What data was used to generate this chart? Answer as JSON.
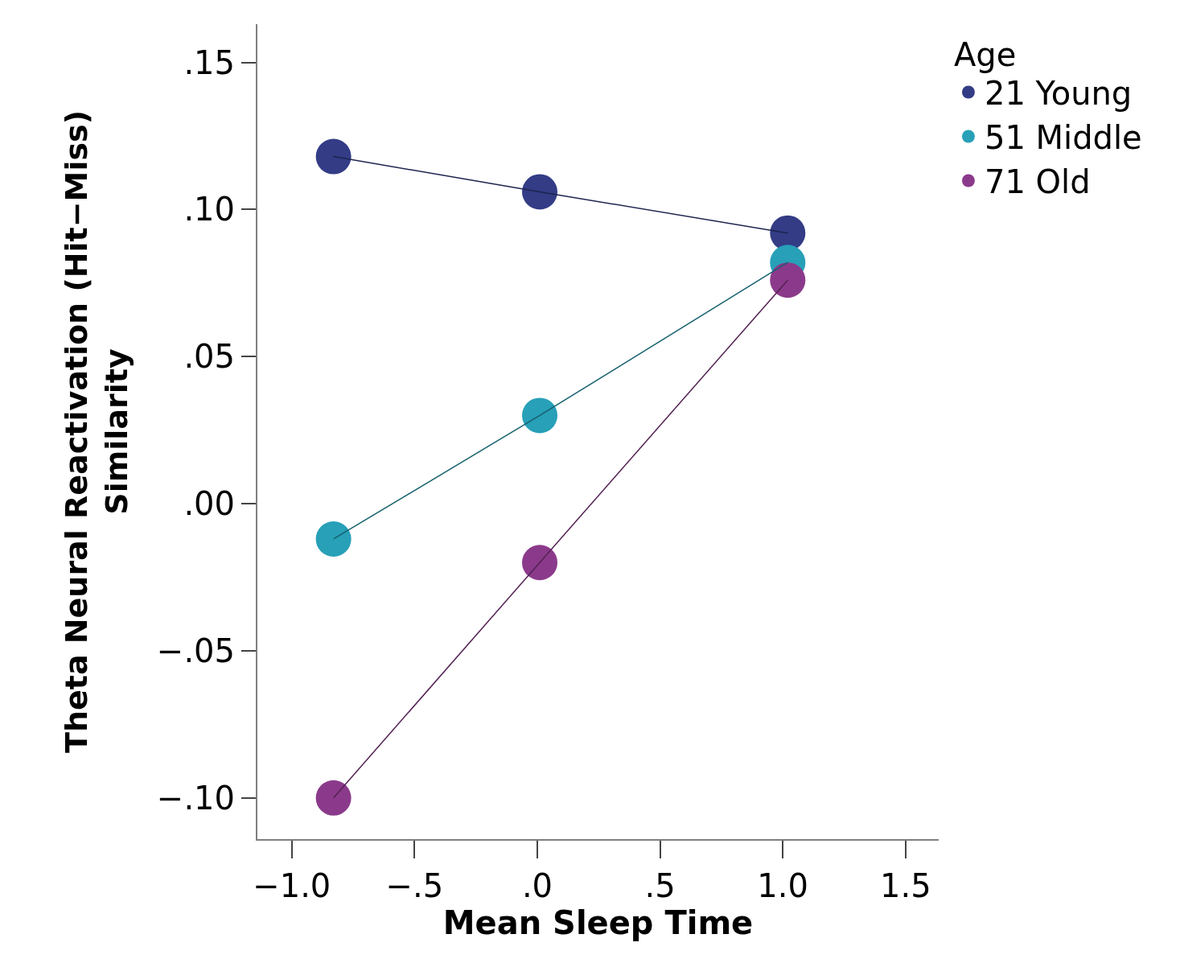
{
  "chart_data": {
    "type": "line",
    "xlabel": "Mean Sleep Time",
    "ylabel": "Theta Neural Reactivation (Hit−Miss)\nSimilarity",
    "legend_title": "Age",
    "x": [
      -0.83,
      0.01,
      1.02
    ],
    "series": [
      {
        "name": "21 Young",
        "color": "#333c85",
        "values": [
          0.118,
          0.106,
          0.092
        ]
      },
      {
        "name": "51 Middle",
        "color": "#27a0b8",
        "values": [
          -0.012,
          0.03,
          0.082
        ]
      },
      {
        "name": "71 Old",
        "color": "#8b3a8b",
        "values": [
          -0.1,
          -0.02,
          0.076
        ]
      }
    ],
    "xlim": [
      -1.14,
      1.635
    ],
    "ylim": [
      -0.114,
      0.163
    ],
    "xticks": [
      {
        "value": -1.0,
        "label": "−1.0"
      },
      {
        "value": -0.5,
        "label": "−.5"
      },
      {
        "value": 0,
        "label": ".0"
      },
      {
        "value": 0.5,
        "label": ".5"
      },
      {
        "value": 1.0,
        "label": "1.0"
      },
      {
        "value": 1.5,
        "label": "1.5"
      }
    ],
    "yticks": [
      {
        "value": -0.1,
        "label": "−.10"
      },
      {
        "value": -0.05,
        "label": "−.05"
      },
      {
        "value": 0,
        "label": ".00"
      },
      {
        "value": 0.05,
        "label": ".05"
      },
      {
        "value": 0.1,
        "label": ".10"
      },
      {
        "value": 0.15,
        "label": ".15"
      }
    ],
    "legend": "top right",
    "marker": "circle",
    "line_style": "solid"
  }
}
